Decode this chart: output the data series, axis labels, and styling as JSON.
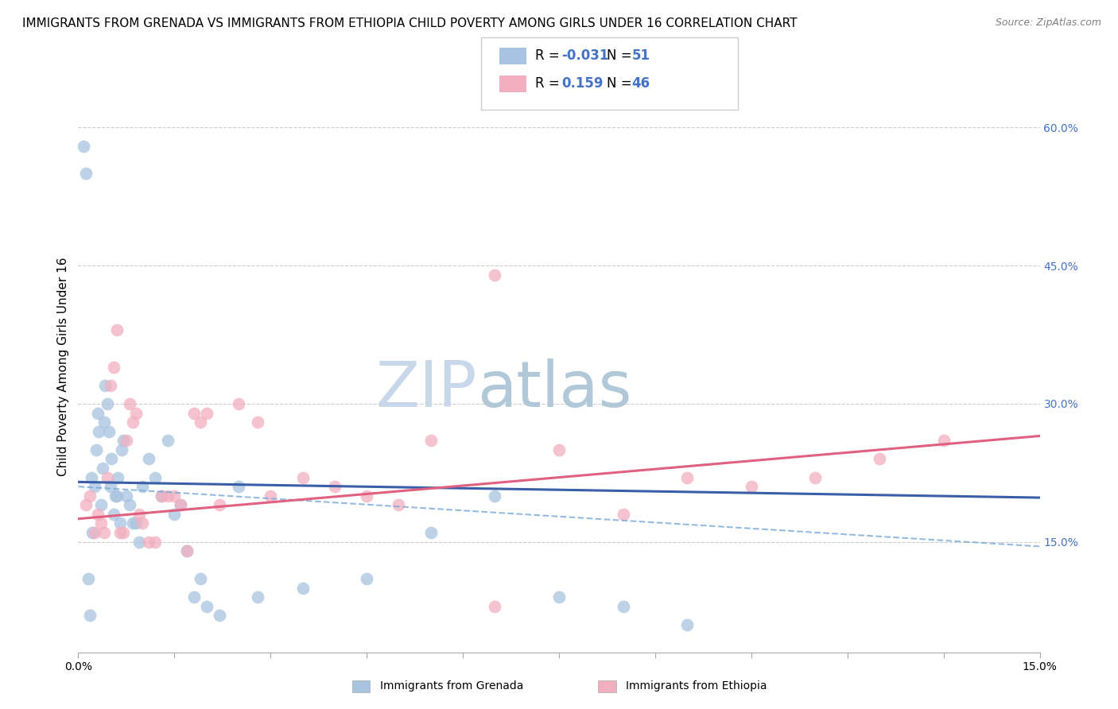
{
  "title": "IMMIGRANTS FROM GRENADA VS IMMIGRANTS FROM ETHIOPIA CHILD POVERTY AMONG GIRLS UNDER 16 CORRELATION CHART",
  "source": "Source: ZipAtlas.com",
  "ylabel": "Child Poverty Among Girls Under 16",
  "watermark_zip": "ZIP",
  "watermark_atlas": "atlas",
  "xlim": [
    0.0,
    15.0
  ],
  "ylim": [
    3.0,
    65.0
  ],
  "x_ticks": [
    0.0,
    15.0
  ],
  "x_tick_labels": [
    "0.0%",
    "15.0%"
  ],
  "y_ticks_right": [
    15.0,
    30.0,
    45.0,
    60.0
  ],
  "y_tick_labels_right": [
    "15.0%",
    "30.0%",
    "45.0%",
    "60.0%"
  ],
  "grenada_color": "#a8c4e0",
  "ethiopia_color": "#f2afc0",
  "grenada_line_color": "#3a5fa8",
  "ethiopia_line_color": "#e06080",
  "grenada_dash_color": "#7aaad8",
  "grenada_R": -0.031,
  "grenada_N": 51,
  "ethiopia_R": 0.159,
  "ethiopia_N": 46,
  "legend_label_grenada": "Immigrants from Grenada",
  "legend_label_ethiopia": "Immigrants from Ethiopia",
  "grenada_x": [
    0.08,
    0.12,
    0.15,
    0.18,
    0.2,
    0.22,
    0.25,
    0.28,
    0.3,
    0.32,
    0.35,
    0.38,
    0.4,
    0.42,
    0.45,
    0.48,
    0.5,
    0.52,
    0.55,
    0.58,
    0.6,
    0.62,
    0.65,
    0.68,
    0.7,
    0.75,
    0.8,
    0.85,
    0.9,
    0.95,
    1.0,
    1.1,
    1.2,
    1.3,
    1.4,
    1.5,
    1.6,
    1.7,
    1.8,
    1.9,
    2.0,
    2.2,
    2.5,
    2.8,
    3.5,
    4.5,
    5.5,
    6.5,
    7.5,
    8.5,
    9.5
  ],
  "grenada_y": [
    58.0,
    55.0,
    11.0,
    7.0,
    22.0,
    16.0,
    21.0,
    25.0,
    29.0,
    27.0,
    19.0,
    23.0,
    28.0,
    32.0,
    30.0,
    27.0,
    21.0,
    24.0,
    18.0,
    20.0,
    20.0,
    22.0,
    17.0,
    25.0,
    26.0,
    20.0,
    19.0,
    17.0,
    17.0,
    15.0,
    21.0,
    24.0,
    22.0,
    20.0,
    26.0,
    18.0,
    19.0,
    14.0,
    9.0,
    11.0,
    8.0,
    7.0,
    21.0,
    9.0,
    10.0,
    11.0,
    16.0,
    20.0,
    9.0,
    8.0,
    6.0
  ],
  "ethiopia_x": [
    0.12,
    0.18,
    0.25,
    0.3,
    0.35,
    0.4,
    0.45,
    0.5,
    0.55,
    0.6,
    0.65,
    0.7,
    0.75,
    0.8,
    0.85,
    0.9,
    0.95,
    1.0,
    1.1,
    1.2,
    1.3,
    1.4,
    1.5,
    1.6,
    1.7,
    1.8,
    1.9,
    2.0,
    2.2,
    2.5,
    2.8,
    3.0,
    3.5,
    4.0,
    4.5,
    5.0,
    5.5,
    6.5,
    7.5,
    8.5,
    9.5,
    10.5,
    11.5,
    12.5,
    13.5,
    6.5
  ],
  "ethiopia_y": [
    19.0,
    20.0,
    16.0,
    18.0,
    17.0,
    16.0,
    22.0,
    32.0,
    34.0,
    38.0,
    16.0,
    16.0,
    26.0,
    30.0,
    28.0,
    29.0,
    18.0,
    17.0,
    15.0,
    15.0,
    20.0,
    20.0,
    20.0,
    19.0,
    14.0,
    29.0,
    28.0,
    29.0,
    19.0,
    30.0,
    28.0,
    20.0,
    22.0,
    21.0,
    20.0,
    19.0,
    26.0,
    44.0,
    25.0,
    18.0,
    22.0,
    21.0,
    22.0,
    24.0,
    26.0,
    8.0
  ],
  "title_fontsize": 11,
  "source_fontsize": 9,
  "axis_label_fontsize": 11,
  "tick_fontsize": 10,
  "legend_fontsize": 12,
  "watermark_fontsize": 58,
  "watermark_color": "#c8d8ea",
  "watermark_color2": "#b0c8d8",
  "background_color": "#ffffff",
  "grid_color": "#cccccc",
  "grenada_line_y0": 21.5,
  "grenada_line_y1": 19.8,
  "ethiopia_line_y0": 17.5,
  "ethiopia_line_y1": 26.5,
  "grenada_dash_y0": 21.0,
  "grenada_dash_y1": 14.5
}
